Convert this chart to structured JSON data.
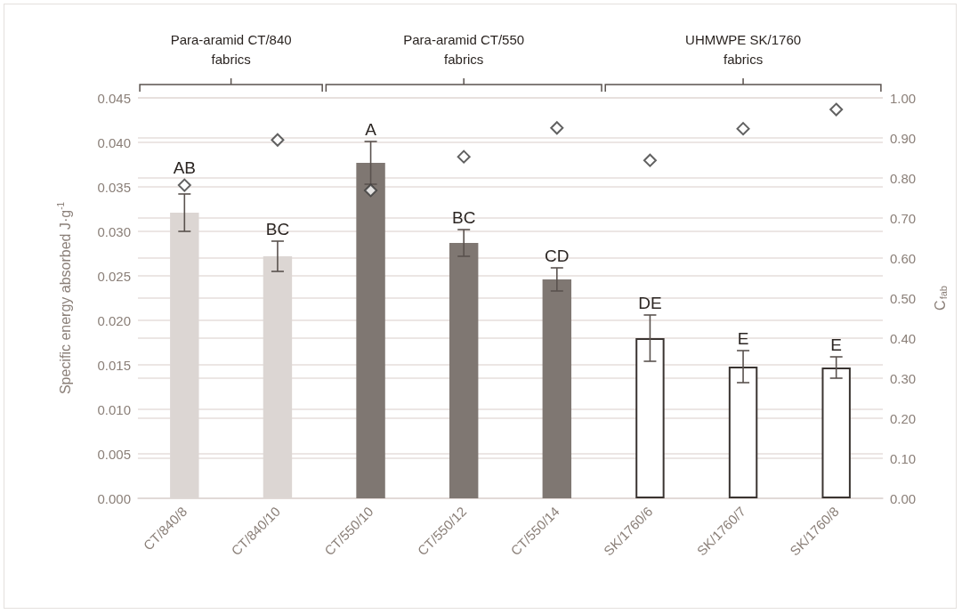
{
  "chart_data": {
    "type": "bar",
    "ylabel": "Specific energy absorbed J·g$^{-1}$",
    "y2label": "C$_{fab}$",
    "categories": [
      "CT/840/8",
      "CT/840/10",
      "CT/550/10",
      "CT/550/12",
      "CT/550/14",
      "SK/1760/6",
      "SK/1760/7",
      "SK/1760/8"
    ],
    "series": [
      {
        "values": [
          0.0321,
          0.0272,
          0.0377,
          0.0287,
          0.0246,
          0.018,
          0.0148,
          0.0147
        ],
        "colors": [
          "#dcd6d3",
          "#dcd6d3",
          "#7f7772",
          "#7f7772",
          "#7f7772",
          "#ffffff",
          "#ffffff",
          "#ffffff"
        ],
        "errors": [
          0.0021,
          0.0017,
          0.0024,
          0.0015,
          0.0013,
          0.0026,
          0.0018,
          0.0012
        ]
      },
      {
        "type": "scatter",
        "axis": "y2",
        "color": "#3a3a3a",
        "values": [
          0.782,
          0.895,
          0.769,
          0.853,
          0.925,
          0.844,
          0.923,
          0.971
        ]
      }
    ],
    "ylim": [
      0,
      0.045
    ],
    "yticks": [
      {
        "value": 0,
        "label": "0.000"
      },
      {
        "value": 0.005,
        "label": "0.005"
      },
      {
        "value": 0.01,
        "label": "0.010"
      },
      {
        "value": 0.015,
        "label": "0.015"
      },
      {
        "value": 0.02,
        "label": "0.020"
      },
      {
        "value": 0.025,
        "label": "0.025"
      },
      {
        "value": 0.03,
        "label": "0.030"
      },
      {
        "value": 0.035,
        "label": "0.035"
      },
      {
        "value": 0.04,
        "label": "0.040"
      },
      {
        "value": 0.045,
        "label": "0.045"
      }
    ],
    "y2lim": [
      0,
      1
    ],
    "y2ticks": [
      {
        "value": 0,
        "label": "0.00"
      },
      {
        "value": 0.1,
        "label": "0.10"
      },
      {
        "value": 0.2,
        "label": "0.20"
      },
      {
        "value": 0.3,
        "label": "0.30"
      },
      {
        "value": 0.4,
        "label": "0.40"
      },
      {
        "value": 0.5,
        "label": "0.50"
      },
      {
        "value": 0.6,
        "label": "0.60"
      },
      {
        "value": 0.7,
        "label": "0.70"
      },
      {
        "value": 0.8,
        "label": "0.80"
      },
      {
        "value": 0.9,
        "label": "0.90"
      },
      {
        "value": 1,
        "label": "1.00"
      }
    ],
    "grid": "y",
    "marker": "diamond",
    "annotations": [
      "Para-aramid CT/840\nfabrics",
      "Para-aramid CT/550\nfabrics",
      "UHMWPE SK/1760\nfabrics",
      "AB",
      "BC",
      "A",
      "BC",
      "CD",
      "DE",
      "E",
      "E"
    ]
  }
}
